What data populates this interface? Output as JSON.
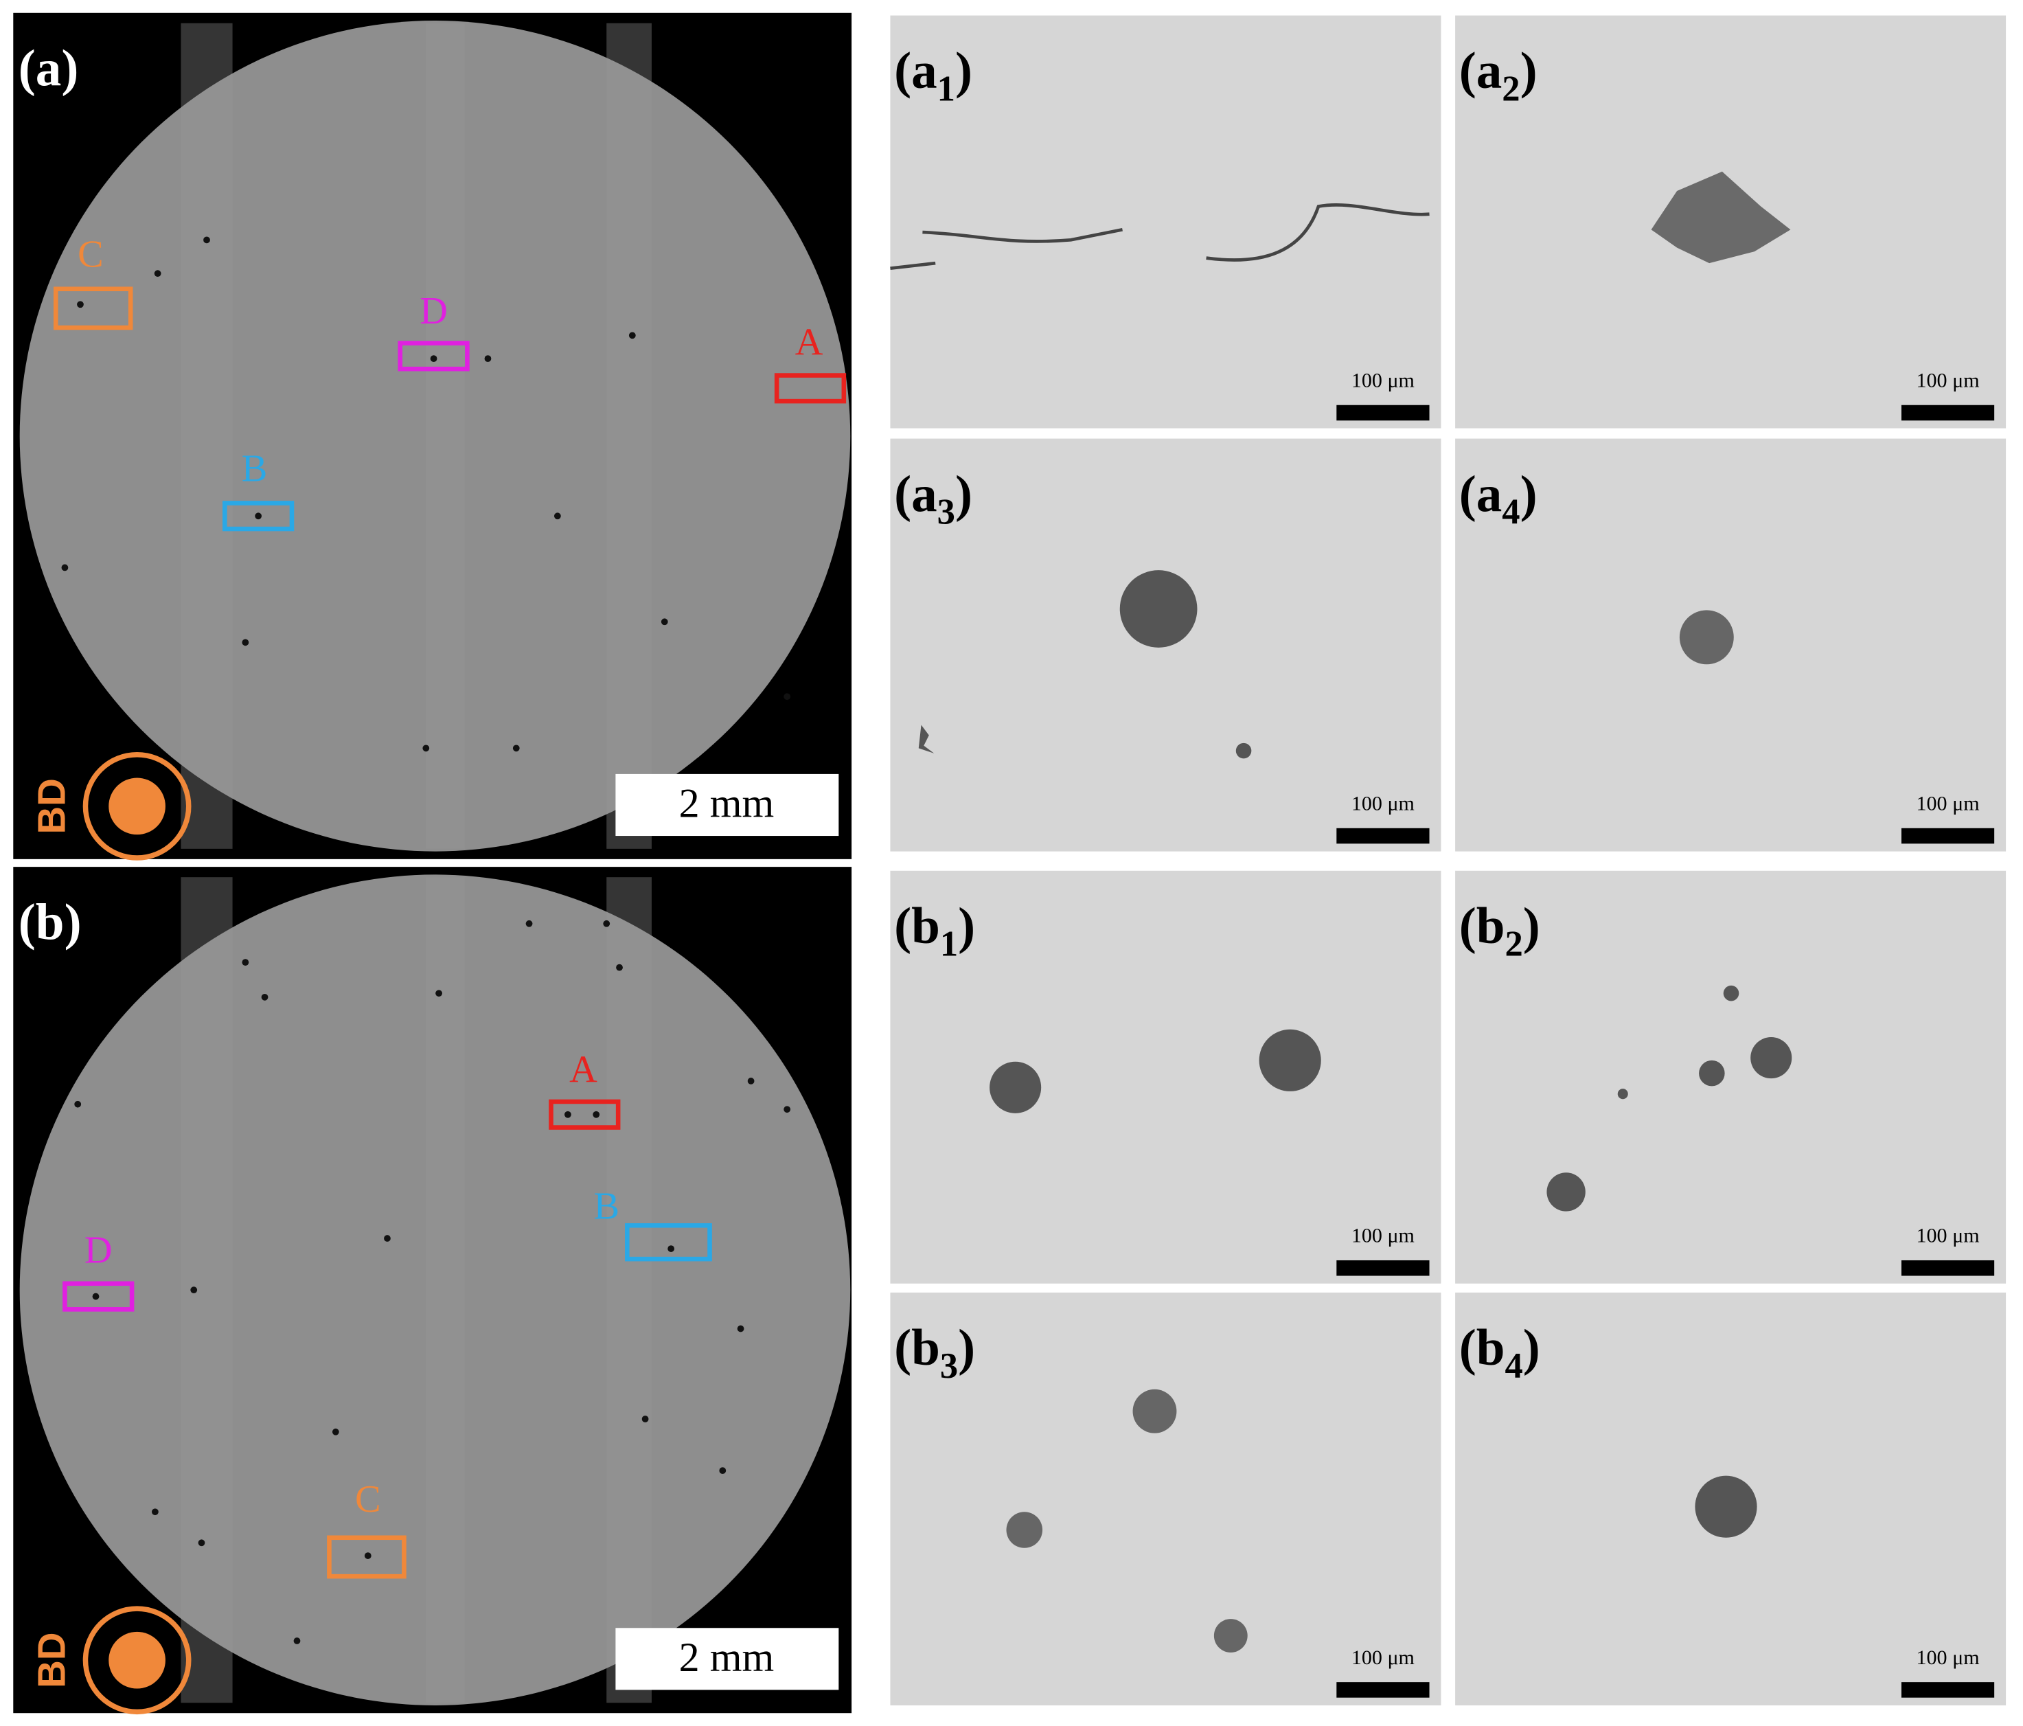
{
  "panels": [
    {
      "label": "(a)",
      "direction": "BD",
      "scale_bar": "2 mm",
      "regions": [
        {
          "label": "A"
        },
        {
          "label": "B"
        },
        {
          "label": "C"
        },
        {
          "label": "D"
        }
      ]
    },
    {
      "label": "(b)",
      "direction": "BD",
      "scale_bar": "2 mm",
      "regions": [
        {
          "label": "A"
        },
        {
          "label": "B"
        },
        {
          "label": "C"
        },
        {
          "label": "D"
        }
      ]
    }
  ],
  "insets": [
    {
      "prefix": "(a",
      "sub": "1",
      "suffix": ")",
      "scale_bar": "100 μm"
    },
    {
      "prefix": "(a",
      "sub": "2",
      "suffix": ")",
      "scale_bar": "100 μm"
    },
    {
      "prefix": "(a",
      "sub": "3",
      "suffix": ")",
      "scale_bar": "100 μm"
    },
    {
      "prefix": "(a",
      "sub": "4",
      "suffix": ")",
      "scale_bar": "100 μm"
    },
    {
      "prefix": "(b",
      "sub": "1",
      "suffix": ")",
      "scale_bar": "100 μm"
    },
    {
      "prefix": "(b",
      "sub": "2",
      "suffix": ")",
      "scale_bar": "100 μm"
    },
    {
      "prefix": "(b",
      "sub": "3",
      "suffix": ")",
      "scale_bar": "100 μm"
    },
    {
      "prefix": "(b",
      "sub": "4",
      "suffix": ")",
      "scale_bar": "100 μm"
    }
  ]
}
